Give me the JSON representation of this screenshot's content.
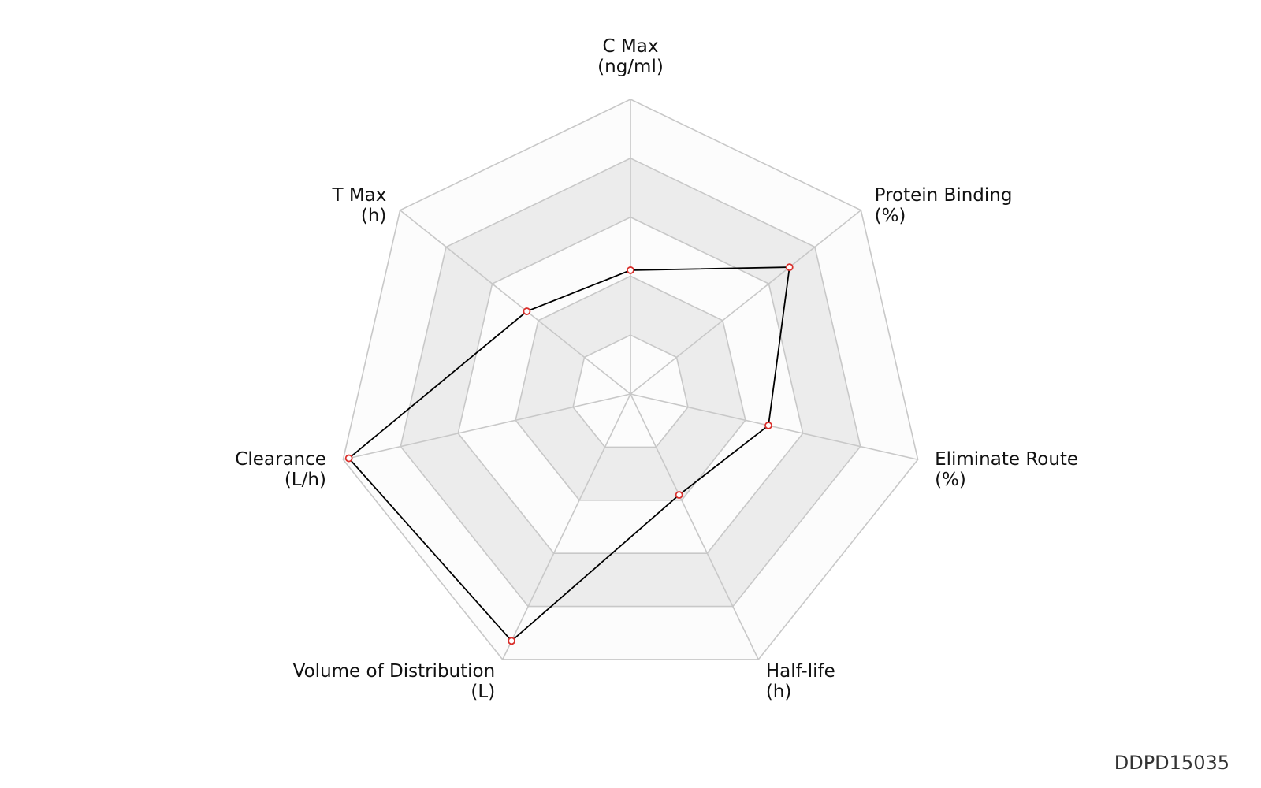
{
  "chart_data": {
    "type": "radar",
    "axes": [
      {
        "name": "C Max",
        "unit": "(ng/ml)"
      },
      {
        "name": "Protein Binding",
        "unit": "(%)"
      },
      {
        "name": "Eliminate Route",
        "unit": "(%)"
      },
      {
        "name": "Half-life",
        "unit": "(h)"
      },
      {
        "name": "Volume of Distribution",
        "unit": "(L)"
      },
      {
        "name": "Clearance",
        "unit": "(L/h)"
      },
      {
        "name": "T Max",
        "unit": "(h)"
      }
    ],
    "range": [
      0,
      1
    ],
    "rings": 5,
    "series": [
      {
        "values": [
          0.42,
          0.69,
          0.48,
          0.38,
          0.93,
          0.98,
          0.45
        ]
      }
    ],
    "colors": {
      "line": "#000000",
      "marker": "#d9302c",
      "grid": "#c8c8c8",
      "band_light": "#fcfcfc",
      "band_dark": "#ececec"
    }
  },
  "footer": {
    "id": "DDPD15035"
  }
}
